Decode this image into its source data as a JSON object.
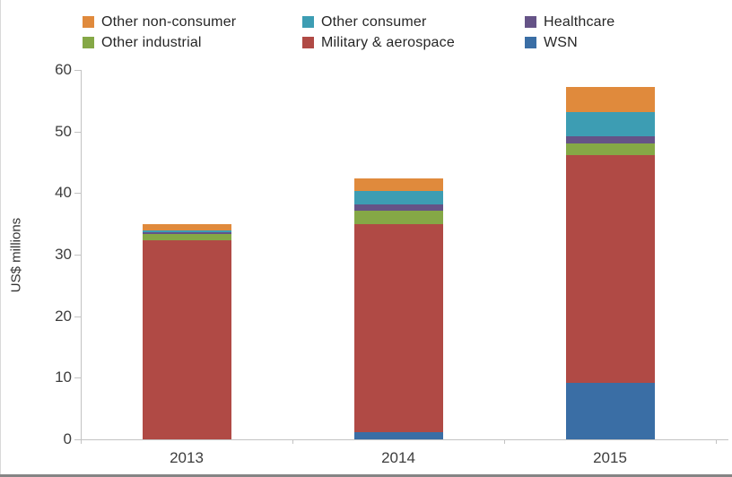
{
  "chart_data": {
    "type": "bar",
    "stacked": true,
    "title": "",
    "xlabel": "",
    "ylabel": "US$ millions",
    "categories": [
      "2013",
      "2014",
      "2015"
    ],
    "series": [
      {
        "name": "WSN",
        "color": "#3A6EA5",
        "values": [
          0,
          1.1,
          9.2
        ]
      },
      {
        "name": "Military & aerospace",
        "color": "#B04A45",
        "values": [
          32.3,
          33.8,
          36.9
        ]
      },
      {
        "name": "Other industrial",
        "color": "#85A846",
        "values": [
          1.1,
          2.3,
          1.9
        ]
      },
      {
        "name": "Healthcare",
        "color": "#655387",
        "values": [
          0.2,
          0.9,
          1.2
        ]
      },
      {
        "name": "Other consumer",
        "color": "#3D9DB3",
        "values": [
          0.4,
          2.2,
          3.9
        ]
      },
      {
        "name": "Other non-consumer",
        "color": "#E08A3C",
        "values": [
          1.0,
          2.1,
          4.1
        ]
      }
    ],
    "totals": [
      35.0,
      42.4,
      57.2
    ],
    "ylim": [
      0,
      60
    ],
    "yticks": [
      0,
      10,
      20,
      30,
      40,
      50,
      60
    ],
    "ytick_labels": [
      "0",
      "10",
      "20",
      "30",
      "40",
      "50",
      "60"
    ],
    "grid": false,
    "legend_position": "top"
  },
  "legend": {
    "items": [
      {
        "label": "Other non-consumer",
        "color": "#E08A3C"
      },
      {
        "label": "Other consumer",
        "color": "#3D9DB3"
      },
      {
        "label": "Healthcare",
        "color": "#655387"
      },
      {
        "label": "Other industrial",
        "color": "#85A846"
      },
      {
        "label": "Military & aerospace",
        "color": "#B04A45"
      },
      {
        "label": "WSN",
        "color": "#3A6EA5"
      }
    ]
  }
}
